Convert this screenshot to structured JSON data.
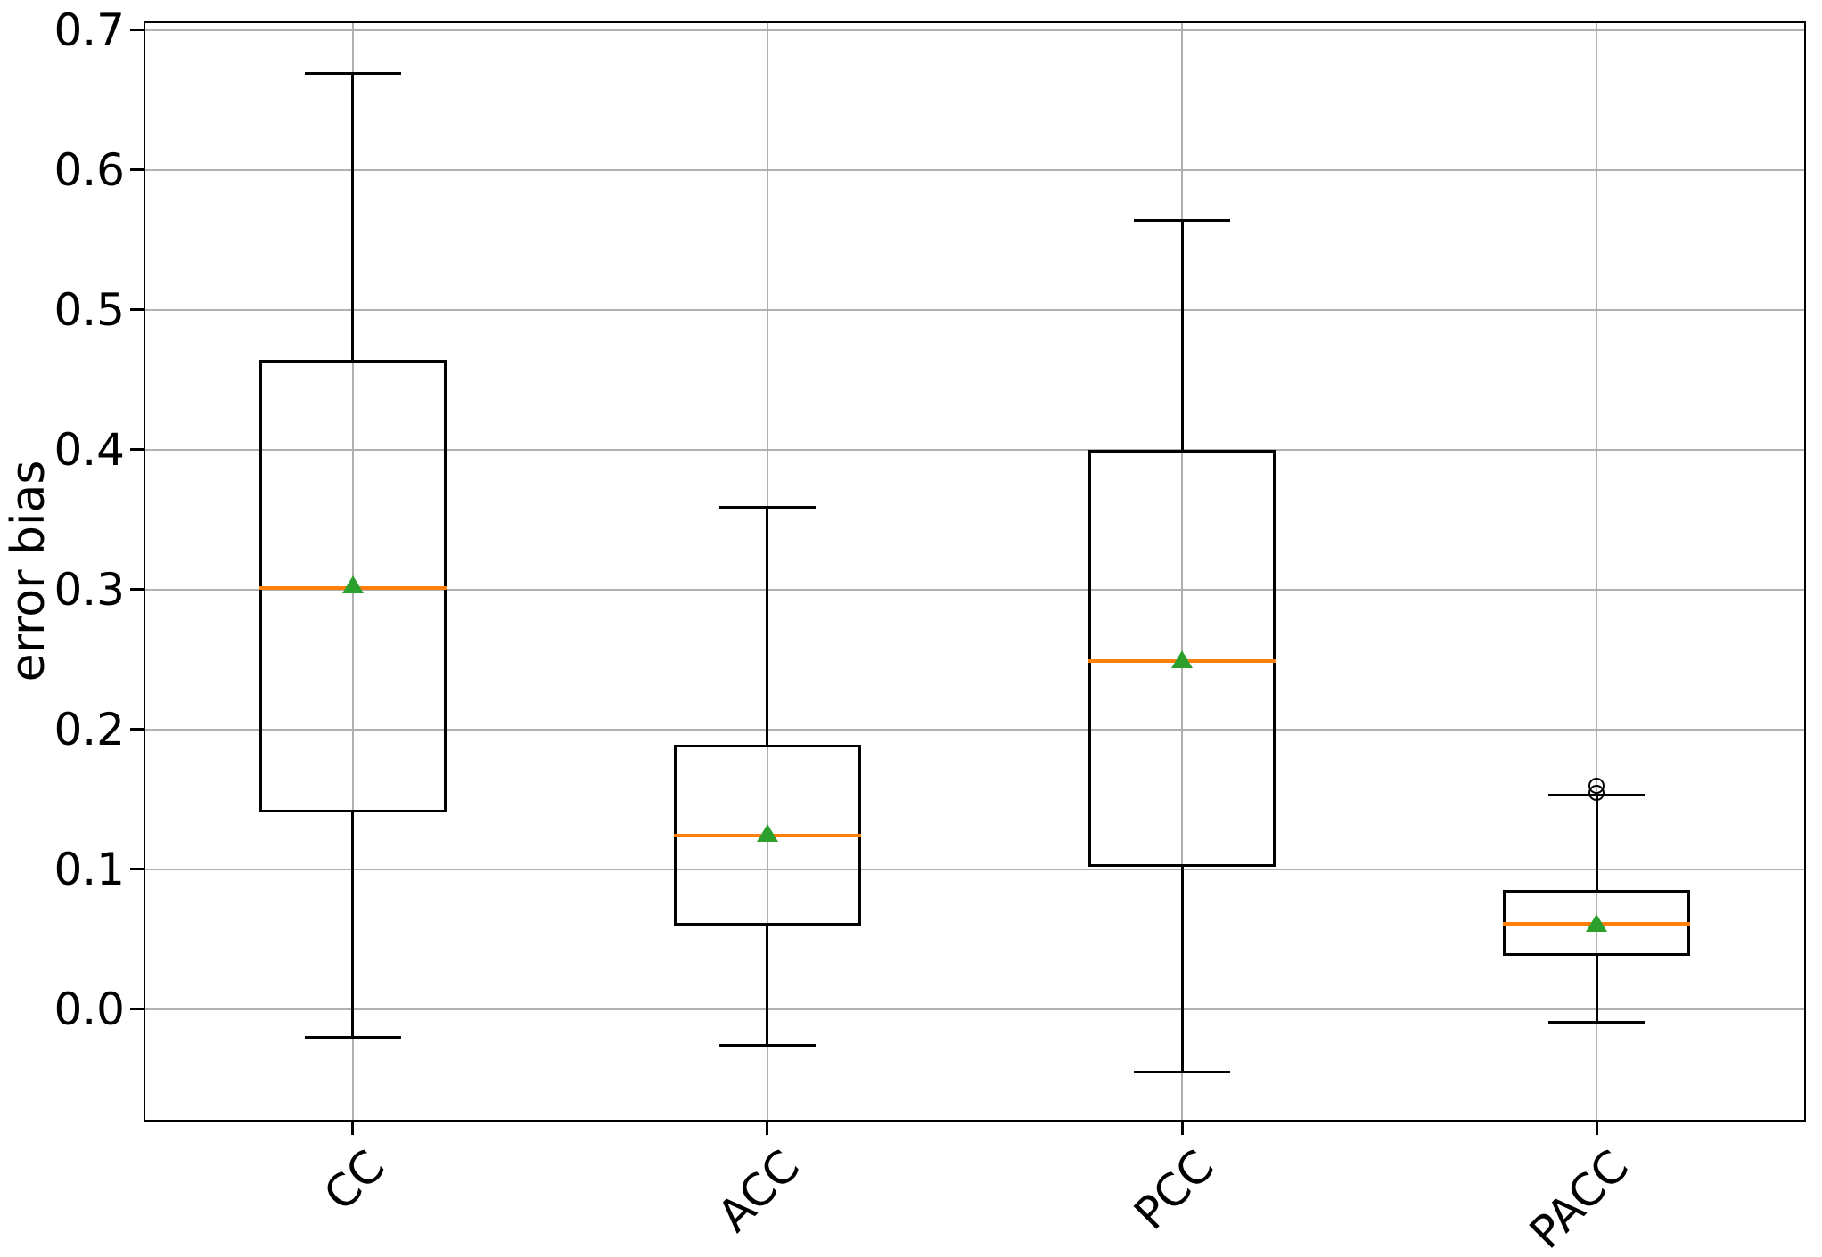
{
  "chart_data": {
    "type": "box",
    "title": "",
    "ylabel": "error bias",
    "xlabel": "",
    "categories": [
      "CC",
      "ACC",
      "PCC",
      "PACC"
    ],
    "yticks": [
      0.0,
      0.1,
      0.2,
      0.3,
      0.4,
      0.5,
      0.6,
      0.7
    ],
    "ylim": [
      -0.079,
      0.705
    ],
    "grid": true,
    "legend": "none",
    "series": [
      {
        "label": "CC",
        "whislo": -0.02,
        "q1": 0.141,
        "med": 0.301,
        "mean": 0.304,
        "q3": 0.464,
        "whishi": 0.669,
        "fliers": []
      },
      {
        "label": "ACC",
        "whislo": -0.026,
        "q1": 0.06,
        "med": 0.124,
        "mean": 0.126,
        "q3": 0.189,
        "whishi": 0.359,
        "fliers": []
      },
      {
        "label": "PCC",
        "whislo": -0.045,
        "q1": 0.102,
        "med": 0.249,
        "mean": 0.25,
        "q3": 0.4,
        "whishi": 0.564,
        "fliers": []
      },
      {
        "label": "PACC",
        "whislo": -0.009,
        "q1": 0.038,
        "med": 0.061,
        "mean": 0.062,
        "q3": 0.085,
        "whishi": 0.153,
        "fliers": [
          0.155,
          0.16
        ]
      }
    ],
    "colors": {
      "median": "#ff7f0e",
      "mean": "#2ca02c",
      "box_line": "#000000",
      "grid": "#b0b0b0",
      "text": "#000000"
    }
  }
}
